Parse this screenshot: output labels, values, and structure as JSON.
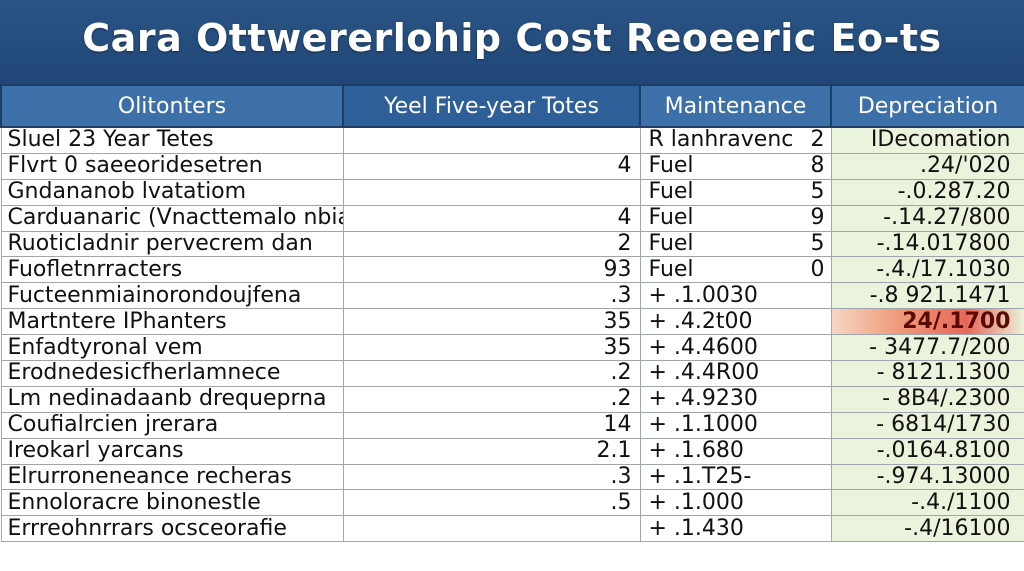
{
  "title": "Cara Ottwererlohip Cost Reoeeric Eo-ts",
  "colors": {
    "banner": "#2b5486",
    "header_cell": "#3d6fa8",
    "depreciation_fill": "#eaf4dc",
    "highlight": "#e8675a"
  },
  "table": {
    "headers": [
      "Olitonters",
      "Yeel  Five-year  Totes",
      "Maintenance",
      "Depreciation"
    ],
    "rows": [
      {
        "label": "Sluel 23 Year Tetes",
        "total": "",
        "maint_value": "R lanhravenc",
        "maint_count": "2",
        "dep": "IDecomation",
        "highlight": false
      },
      {
        "label": "Flvrt 0 saeeoridesetren",
        "total": "4",
        "maint_value": "Fuel",
        "maint_count": "8",
        "dep": ".24/'020",
        "highlight": false
      },
      {
        "label": "Gndananob lvatatiom",
        "total": "",
        "maint_value": "Fuel",
        "maint_count": "5",
        "dep": "-.0.287.20",
        "highlight": false
      },
      {
        "label": "Carduanaric (Vnacttemalo nbia)",
        "total": "4",
        "maint_value": "Fuel",
        "maint_count": "9",
        "dep": "-.14.27/800",
        "highlight": false
      },
      {
        "label": "Ruoticladnir pervecrem dan",
        "total": "2",
        "maint_value": "Fuel",
        "maint_count": "5",
        "dep": "-.14.017800",
        "highlight": false
      },
      {
        "label": "Fuofletnrracters",
        "total": "93",
        "maint_value": "Fuel",
        "maint_count": "0",
        "dep": "-.4./17.1030",
        "highlight": false
      },
      {
        "label": "Fucteenmiainorondoujfena",
        "total": ".3",
        "maint_value": "+ .1.0030",
        "maint_count": "",
        "dep": "-.8 921.1471",
        "highlight": false
      },
      {
        "label": "Martntere IPhanters",
        "total": "35",
        "maint_value": "+ .4.2t00",
        "maint_count": "",
        "dep": "24/.1700",
        "highlight": true
      },
      {
        "label": "Enfadtyronal vem",
        "total": "35",
        "maint_value": "+ .4.4600",
        "maint_count": "",
        "dep": "- 3477.7/200",
        "highlight": false
      },
      {
        "label": "Erodnedesicfherlamnece",
        "total": ".2",
        "maint_value": "+ .4.4R00",
        "maint_count": "",
        "dep": "- 8121.1300",
        "highlight": false
      },
      {
        "label": "Lm nedinadaanb drequeprna",
        "total": ".2",
        "maint_value": "+ .4.9230",
        "maint_count": "",
        "dep": "- 8B4/.2300",
        "highlight": false
      },
      {
        "label": "Coufialrcien jrerara",
        "total": "14",
        "maint_value": "+ .1.1000",
        "maint_count": "",
        "dep": "- 6814/1730",
        "highlight": false
      },
      {
        "label": "Ireokarl yarcans",
        "total": "2.1",
        "maint_value": "+ .1.680",
        "maint_count": "",
        "dep": "-.0164.8100",
        "highlight": false
      },
      {
        "label": "Elrurroneneance recheras",
        "total": ".3",
        "maint_value": "+ .1.T25-",
        "maint_count": "",
        "dep": "-.974.13000",
        "highlight": false
      },
      {
        "label": "Ennoloracre binonestle",
        "total": ".5",
        "maint_value": "+ .1.000",
        "maint_count": "",
        "dep": "-.4./1100",
        "highlight": false
      },
      {
        "label": "Errreohnrrars ocsceorafie",
        "total": "",
        "maint_value": "+ .1.430",
        "maint_count": "",
        "dep": "-.4/16100",
        "highlight": false
      }
    ]
  }
}
